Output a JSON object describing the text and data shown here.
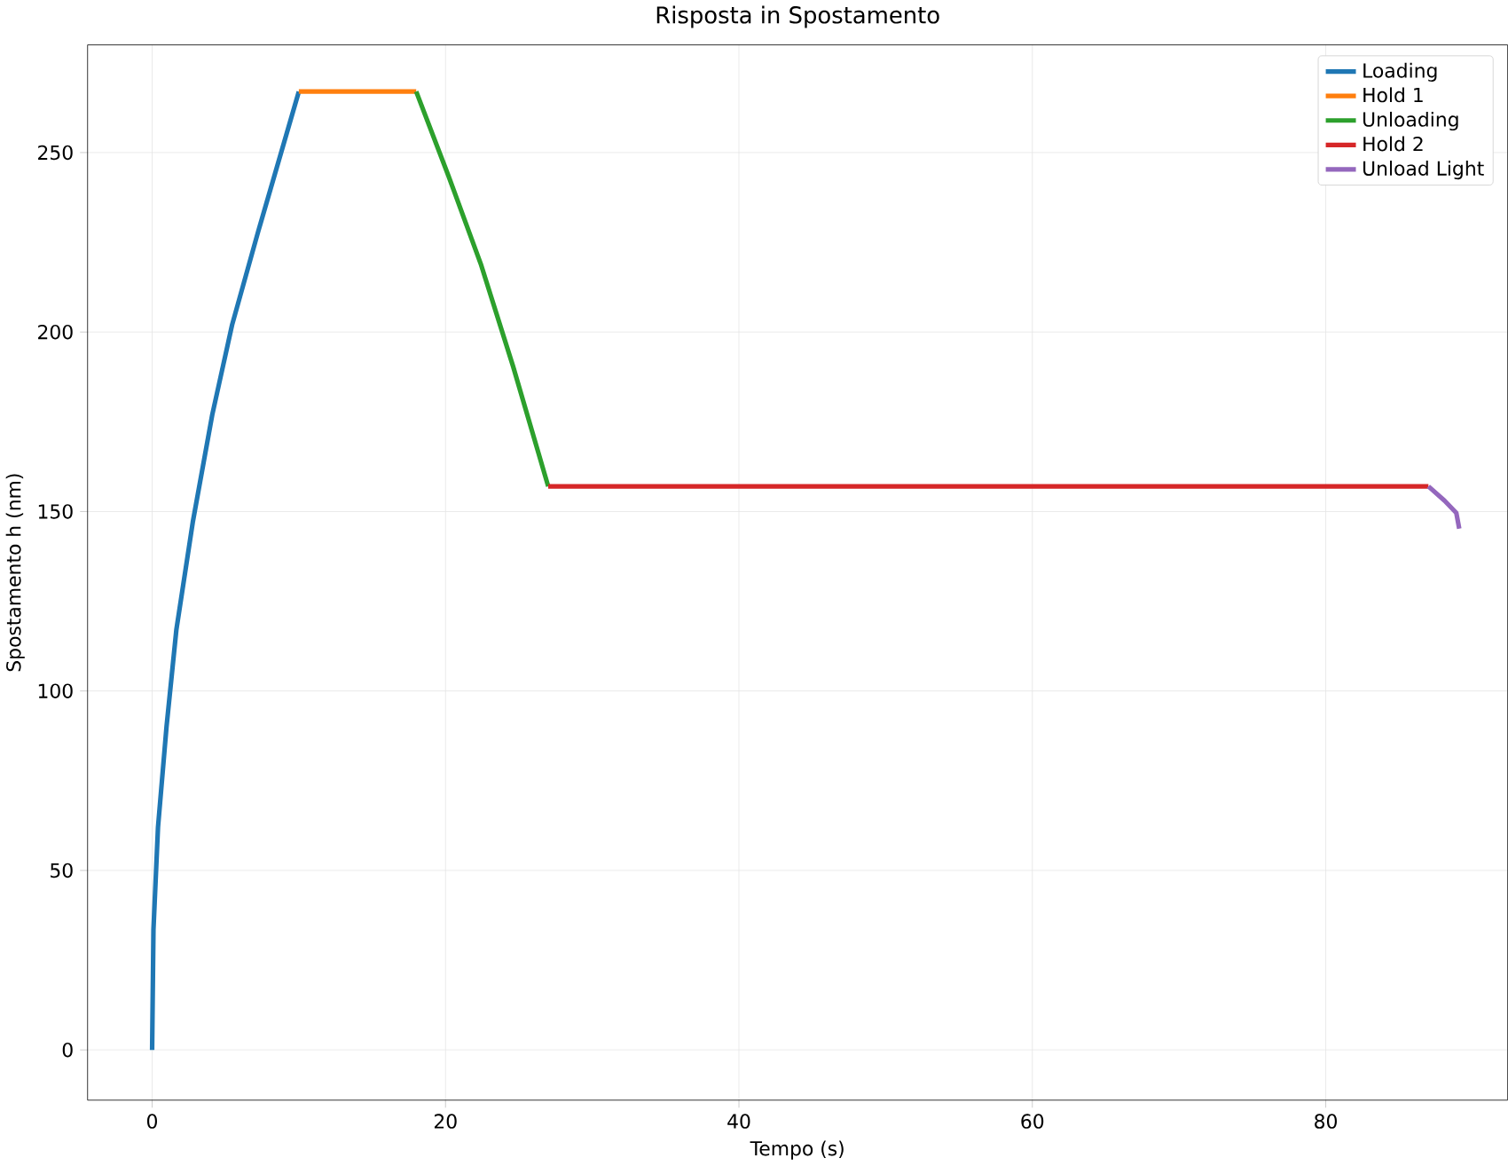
{
  "chart_data": {
    "type": "line",
    "title": "Risposta in Spostamento",
    "xlabel": "Tempo (s)",
    "ylabel": "Spostamento h (nm)",
    "xlim": [
      -4.4,
      92.4
    ],
    "ylim": [
      -14,
      280
    ],
    "xticks": [
      0,
      20,
      40,
      60,
      80
    ],
    "yticks": [
      0,
      50,
      100,
      150,
      200,
      250
    ],
    "grid": true,
    "legend": "top right",
    "marker": "none",
    "line_style": "solid",
    "series": [
      {
        "name": "Loading",
        "color": "#1f77b4",
        "x": [
          0,
          0.09,
          0.4,
          0.98,
          1.65,
          2.77,
          4.1,
          5.45,
          7.23,
          10
        ],
        "values": [
          0,
          33.5,
          62,
          90,
          117,
          147,
          177,
          202,
          228,
          267
        ]
      },
      {
        "name": "Hold 1",
        "color": "#ff7f0e",
        "x": [
          10,
          18
        ],
        "values": [
          267,
          267
        ]
      },
      {
        "name": "Unloading",
        "color": "#2ca02c",
        "x": [
          18,
          20.2,
          22.4,
          24.6,
          27
        ],
        "values": [
          267,
          243.5,
          219,
          190.5,
          157
        ]
      },
      {
        "name": "Hold 2",
        "color": "#d62728",
        "x": [
          27,
          87
        ],
        "values": [
          157,
          157
        ]
      },
      {
        "name": "Unload Light",
        "color": "#9467bd",
        "x": [
          87,
          88.1,
          88.9,
          89.1
        ],
        "values": [
          157,
          153,
          149.6,
          145.2
        ]
      }
    ]
  }
}
